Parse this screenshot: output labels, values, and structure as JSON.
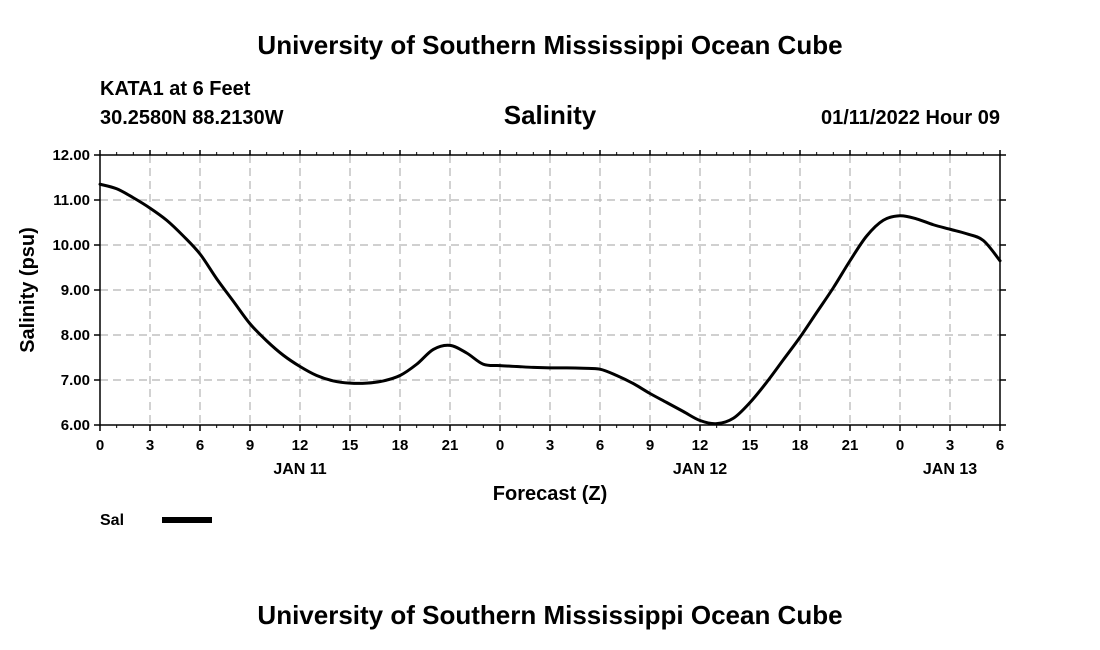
{
  "page": {
    "top_title": "University of Southern Mississippi Ocean Cube",
    "bottom_title": "University of Southern Mississippi Ocean Cube",
    "station": "KATA1 at 6 Feet",
    "coordinates": "30.2580N  88.2130W",
    "datetime": "01/11/2022 Hour 09"
  },
  "chart_data": {
    "type": "line",
    "title": "Salinity",
    "xlabel": "Forecast (Z)",
    "ylabel": "Salinity (psu)",
    "ylim": [
      6.0,
      12.0
    ],
    "xlim": [
      0,
      54
    ],
    "y_ticks": [
      "6.00",
      "7.00",
      "8.00",
      "9.00",
      "10.00",
      "11.00",
      "12.00"
    ],
    "x_tick_hours": [
      0,
      3,
      6,
      9,
      12,
      15,
      18,
      21,
      24,
      27,
      30,
      33,
      36,
      39,
      42,
      45,
      48,
      51,
      54
    ],
    "x_tick_labels": [
      "0",
      "3",
      "6",
      "9",
      "12",
      "15",
      "18",
      "21",
      "0",
      "3",
      "6",
      "9",
      "12",
      "15",
      "18",
      "21",
      "0",
      "3",
      "6"
    ],
    "day_labels": [
      {
        "label": "JAN 11",
        "hour": 12
      },
      {
        "label": "JAN 12",
        "hour": 36
      },
      {
        "label": "JAN 13",
        "hour": 51
      }
    ],
    "grid": true,
    "color": "#000000",
    "series": [
      {
        "name": "Sal",
        "x": [
          0,
          1,
          2,
          3,
          4,
          5,
          6,
          7,
          8,
          9,
          10,
          11,
          12,
          13,
          14,
          15,
          16,
          17,
          18,
          19,
          20,
          21,
          22,
          23,
          24,
          25,
          26,
          27,
          28,
          29,
          30,
          31,
          32,
          33,
          34,
          35,
          36,
          37,
          38,
          39,
          40,
          41,
          42,
          43,
          44,
          45,
          46,
          47,
          48,
          49,
          50,
          51,
          52,
          53,
          54
        ],
        "values": [
          11.35,
          11.25,
          11.05,
          10.82,
          10.55,
          10.2,
          9.8,
          9.25,
          8.75,
          8.25,
          7.87,
          7.55,
          7.3,
          7.1,
          6.98,
          6.93,
          6.93,
          6.98,
          7.1,
          7.35,
          7.68,
          7.77,
          7.6,
          7.35,
          7.32,
          7.3,
          7.28,
          7.27,
          7.27,
          7.26,
          7.24,
          7.1,
          6.92,
          6.7,
          6.5,
          6.3,
          6.1,
          6.03,
          6.15,
          6.5,
          6.95,
          7.45,
          7.95,
          8.5,
          9.05,
          9.65,
          10.2,
          10.55,
          10.65,
          10.58,
          10.45,
          10.35,
          10.25,
          10.1,
          9.65
        ]
      }
    ],
    "legend": [
      {
        "label": "Sal"
      }
    ]
  }
}
